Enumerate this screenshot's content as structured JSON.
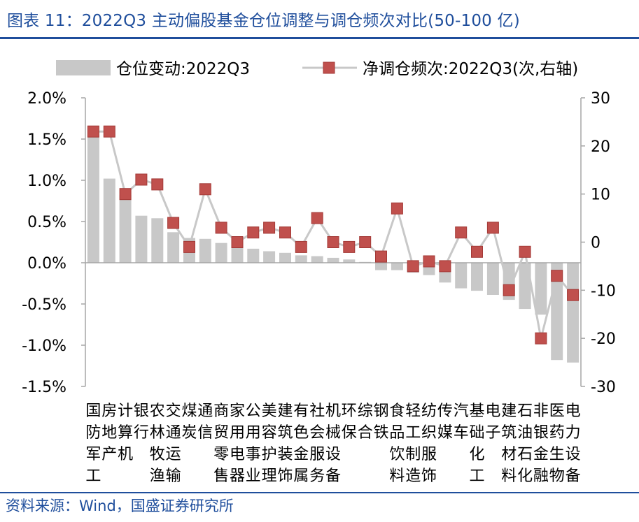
{
  "title": "图表 11：2022Q3 主动偏股基金仓位调整与调仓频次对比(50-100 亿)",
  "source": "资料来源：Wind，国盛证券研究所",
  "chart_data": {
    "type": "bar+line",
    "legend": [
      {
        "name": "仓位变动:2022Q3",
        "kind": "bar",
        "color": "#c8c8c8"
      },
      {
        "name": "净调仓频次:2022Q3(次,右轴)",
        "kind": "line",
        "color": "#c0504d",
        "line_color": "#c8c8c8"
      }
    ],
    "categories": [
      "国防军工",
      "房地产",
      "计算机",
      "银行",
      "农林牧渔",
      "交通运输",
      "煤炭",
      "通信",
      "商贸零售",
      "家用电器",
      "公用事业",
      "美容护理",
      "建筑装饰",
      "有色金属",
      "社会服务",
      "机械设备",
      "环保",
      "综合",
      "钢铁",
      "食品饮料",
      "轻工制造",
      "纺织服饰",
      "传媒",
      "汽车",
      "基础化工",
      "电子",
      "建筑材料",
      "石油石化",
      "非银金融",
      "医药生物",
      "电力设备"
    ],
    "category_lines": [
      [
        "国",
        "防",
        "军",
        "工"
      ],
      [
        "房",
        "地",
        "产"
      ],
      [
        "计",
        "算",
        "机"
      ],
      [
        "银",
        "行"
      ],
      [
        "农",
        "林",
        "牧",
        "渔"
      ],
      [
        "交",
        "通",
        "运",
        "输"
      ],
      [
        "煤",
        "炭"
      ],
      [
        "通",
        "信"
      ],
      [
        "商",
        "贸",
        "零",
        "售"
      ],
      [
        "家",
        "用",
        "电",
        "器"
      ],
      [
        "公",
        "用",
        "事",
        "业"
      ],
      [
        "美",
        "容",
        "护",
        "理"
      ],
      [
        "建",
        "筑",
        "装",
        "饰"
      ],
      [
        "有",
        "色",
        "金",
        "属"
      ],
      [
        "社",
        "会",
        "服",
        "务"
      ],
      [
        "机",
        "械",
        "设",
        "备"
      ],
      [
        "环",
        "保"
      ],
      [
        "综",
        "合"
      ],
      [
        "钢",
        "铁"
      ],
      [
        "食",
        "品",
        "饮",
        "料"
      ],
      [
        "轻",
        "工",
        "制",
        "造"
      ],
      [
        "纺",
        "织",
        "服",
        "饰"
      ],
      [
        "传",
        "媒"
      ],
      [
        "汽",
        "车"
      ],
      [
        "基",
        "础",
        "化",
        "工"
      ],
      [
        "电",
        "子"
      ],
      [
        "建",
        "筑",
        "材",
        "料"
      ],
      [
        "石",
        "油",
        "石",
        "化"
      ],
      [
        "非",
        "银",
        "金",
        "融"
      ],
      [
        "医",
        "药",
        "生",
        "物"
      ],
      [
        "电",
        "力",
        "设",
        "备"
      ]
    ],
    "series": [
      {
        "name": "仓位变动:2022Q3",
        "axis": "left",
        "unit": "%",
        "values": [
          1.55,
          1.02,
          0.82,
          0.57,
          0.54,
          0.37,
          0.3,
          0.29,
          0.24,
          0.21,
          0.17,
          0.14,
          0.12,
          0.09,
          0.08,
          0.06,
          0.04,
          0.01,
          -0.09,
          -0.09,
          -0.12,
          -0.15,
          -0.24,
          -0.31,
          -0.34,
          -0.39,
          -0.45,
          -0.56,
          -0.63,
          -1.18,
          -1.21
        ]
      },
      {
        "name": "净调仓频次:2022Q3",
        "axis": "right",
        "unit": "次",
        "values": [
          23,
          23,
          10,
          13,
          12,
          4,
          -1,
          11,
          3,
          0,
          2,
          3,
          2,
          -1,
          5,
          0,
          -1,
          0,
          -3,
          7,
          -5,
          -4,
          -5,
          2,
          -2,
          3,
          -10,
          -2,
          -20,
          -7,
          -11
        ]
      }
    ],
    "left_axis": {
      "min": -1.5,
      "max": 2.0,
      "ticks": [
        "2.0%",
        "1.5%",
        "1.0%",
        "0.5%",
        "0.0%",
        "-0.5%",
        "-1.0%",
        "-1.5%"
      ]
    },
    "right_axis": {
      "min": -30,
      "max": 30,
      "ticks": [
        "30",
        "20",
        "10",
        "0",
        "-10",
        "-20",
        "-30"
      ]
    },
    "colors": {
      "bar": "#c8c8c8",
      "marker": "#c0504d",
      "marker_edge": "#a33a37",
      "line": "#c8c8c8",
      "axis": "#a6a6a6",
      "brand": "#1f4e9c"
    }
  }
}
